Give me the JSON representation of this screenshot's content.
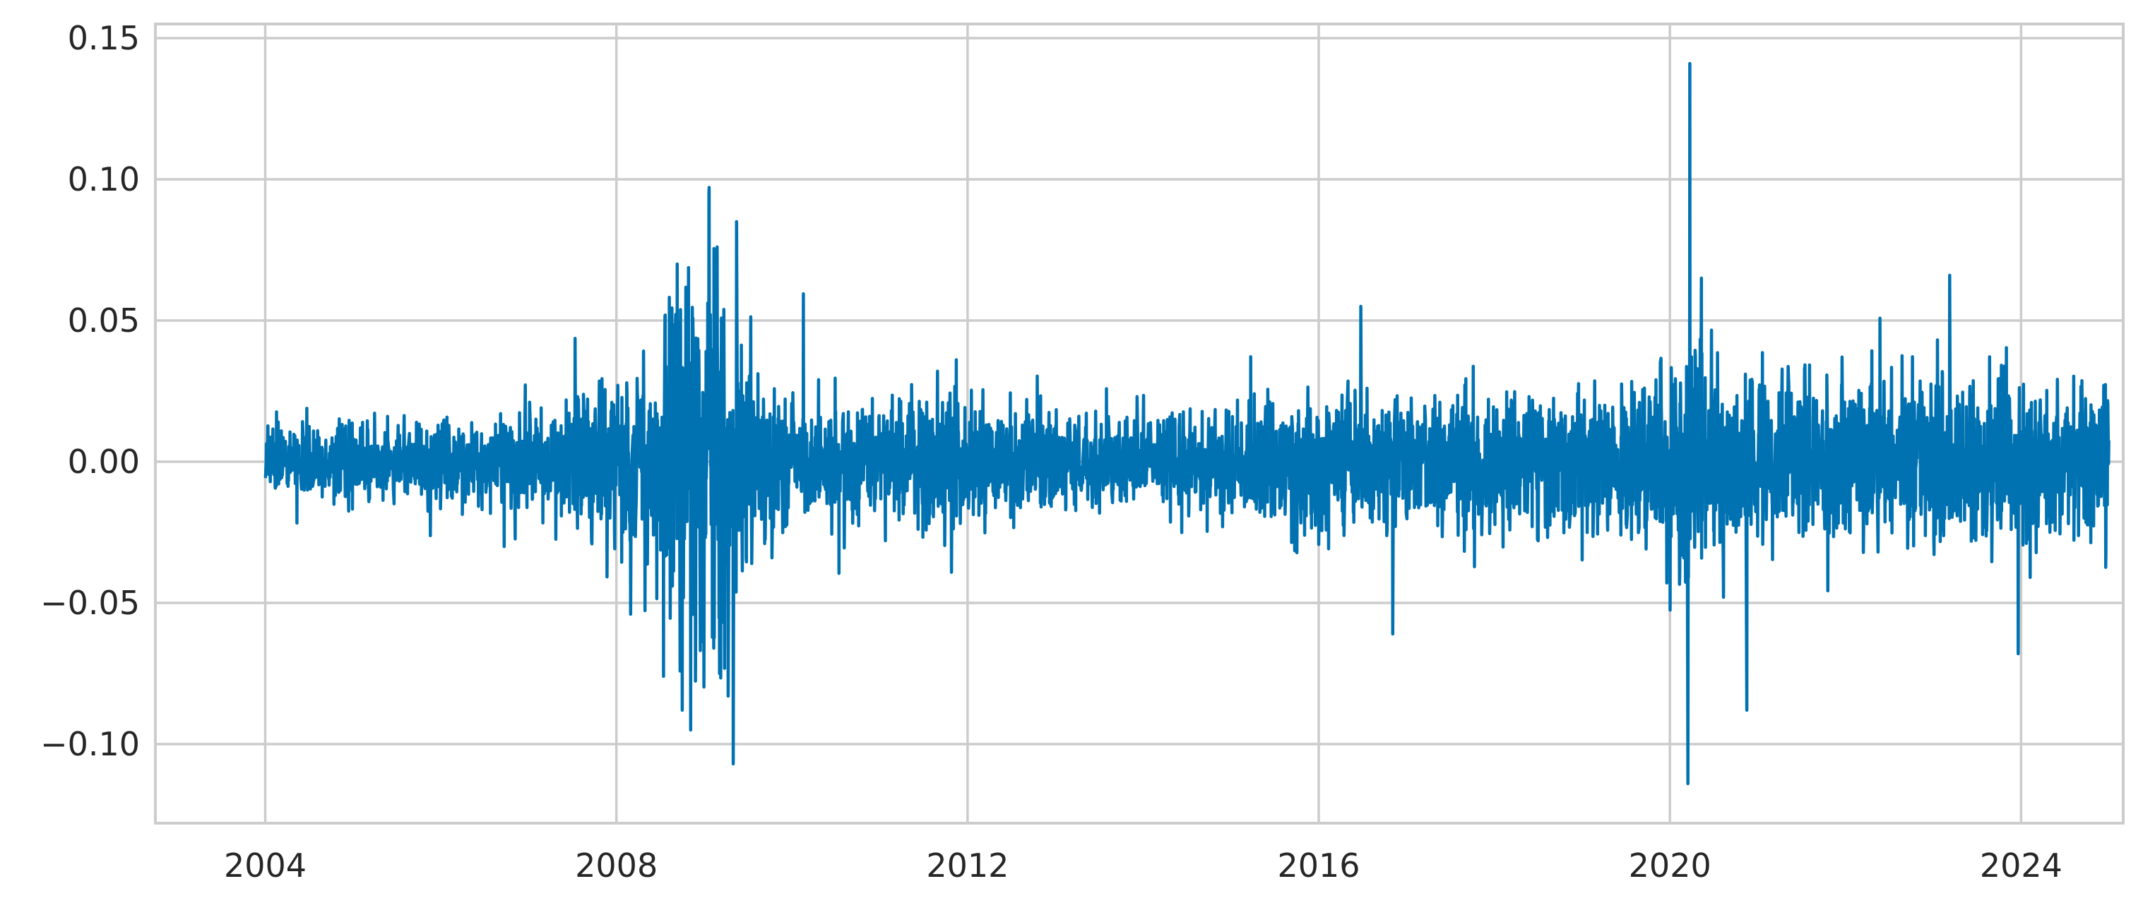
{
  "chart_data": {
    "type": "line",
    "title": "",
    "xlabel": "",
    "ylabel": "",
    "grid": true,
    "legend": "none",
    "color": "#0072b2",
    "x_range": [
      "2002-10-01",
      "2025-03-01"
    ],
    "ylim": [
      -0.128,
      0.155
    ],
    "x_ticks": [
      {
        "value": "2004-01-01",
        "label": "2004"
      },
      {
        "value": "2008-01-01",
        "label": "2008"
      },
      {
        "value": "2012-01-01",
        "label": "2012"
      },
      {
        "value": "2016-01-01",
        "label": "2016"
      },
      {
        "value": "2020-01-01",
        "label": "2020"
      },
      {
        "value": "2024-01-01",
        "label": "2024"
      }
    ],
    "y_ticks": [
      {
        "value": 0.15,
        "label": "0.15"
      },
      {
        "value": 0.1,
        "label": "0.10"
      },
      {
        "value": 0.05,
        "label": "0.05"
      },
      {
        "value": 0.0,
        "label": "0.00"
      },
      {
        "value": -0.05,
        "label": "−0.05"
      },
      {
        "value": -0.1,
        "label": "−0.10"
      }
    ],
    "series": [
      {
        "x": [
          "2004-01-02",
          "2024-12-31"
        ],
        "volatility_envelope": [
          [
            "2004-01",
            0.009
          ],
          [
            "2005-01",
            0.009
          ],
          [
            "2006-01",
            0.01
          ],
          [
            "2007-01",
            0.011
          ],
          [
            "2007-07",
            0.014
          ],
          [
            "2008-01",
            0.02
          ],
          [
            "2008-07",
            0.028
          ],
          [
            "2008-10",
            0.045
          ],
          [
            "2009-01",
            0.048
          ],
          [
            "2009-04",
            0.045
          ],
          [
            "2009-07",
            0.022
          ],
          [
            "2010-01",
            0.014
          ],
          [
            "2010-07",
            0.013
          ],
          [
            "2011-01",
            0.012
          ],
          [
            "2011-09",
            0.018
          ],
          [
            "2012-01",
            0.014
          ],
          [
            "2013-01",
            0.011
          ],
          [
            "2014-01",
            0.011
          ],
          [
            "2015-01",
            0.013
          ],
          [
            "2016-01",
            0.016
          ],
          [
            "2017-01",
            0.015
          ],
          [
            "2018-01",
            0.016
          ],
          [
            "2019-01",
            0.017
          ],
          [
            "2020-01",
            0.018
          ],
          [
            "2020-03",
            0.035
          ],
          [
            "2020-06",
            0.025
          ],
          [
            "2021-01",
            0.02
          ],
          [
            "2022-01",
            0.02
          ],
          [
            "2023-01",
            0.02
          ],
          [
            "2024-01",
            0.019
          ]
        ],
        "extremes": [
          [
            "2008-07-15",
            -0.076
          ],
          [
            "2008-09-10",
            0.07
          ],
          [
            "2008-10-01",
            -0.088
          ],
          [
            "2008-11-05",
            -0.095
          ],
          [
            "2009-01-20",
            0.095
          ],
          [
            "2009-03-05",
            -0.075
          ],
          [
            "2009-04-10",
            -0.083
          ],
          [
            "2009-05-01",
            -0.107
          ],
          [
            "2009-05-15",
            0.085
          ],
          [
            "2008-03-01",
            -0.054
          ],
          [
            "2016-06-24",
            0.055
          ],
          [
            "2016-11-05",
            -0.061
          ],
          [
            "2020-03-24",
            0.141
          ],
          [
            "2020-03-16",
            -0.114
          ],
          [
            "2020-05-10",
            0.065
          ],
          [
            "2020-11-15",
            -0.088
          ],
          [
            "2023-03-10",
            0.066
          ],
          [
            "2023-12-20",
            -0.068
          ]
        ]
      }
    ]
  }
}
